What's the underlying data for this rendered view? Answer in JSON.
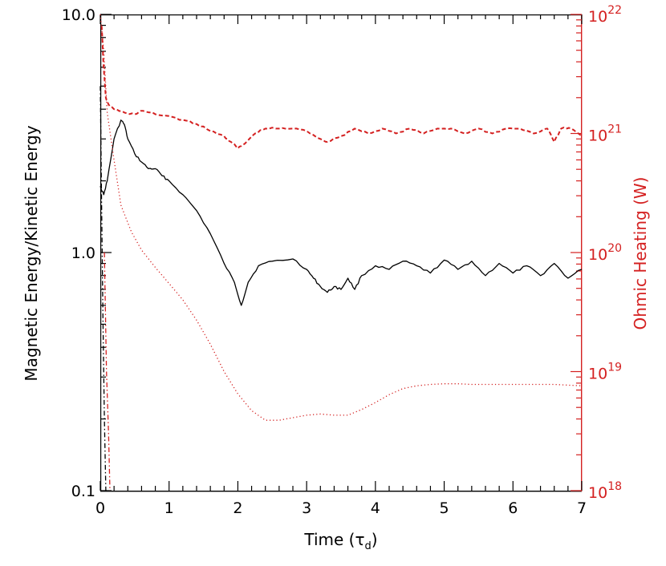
{
  "chart_data": {
    "type": "line",
    "title": "",
    "xlabel": "Time (τ",
    "xlabel_sub": "d",
    "xlabel_end": ")",
    "ylabel_left": "Magnetic Energy/Kinetic Energy",
    "ylabel_right": "Ohmic Heating (W)",
    "xlim": [
      0,
      7
    ],
    "ylim_left": [
      0.1,
      10
    ],
    "ylim_right": [
      1e+18,
      1e+22
    ],
    "yscale_left": "log",
    "yscale_right": "log",
    "x_ticks": [
      "0",
      "1",
      "2",
      "3",
      "4",
      "5",
      "6",
      "7"
    ],
    "y_ticks_left": [
      "0.1",
      "1.0",
      "10.0"
    ],
    "y_ticks_right": [
      {
        "base": "10",
        "exp": "18"
      },
      {
        "base": "10",
        "exp": "19"
      },
      {
        "base": "10",
        "exp": "20"
      },
      {
        "base": "10",
        "exp": "21"
      },
      {
        "base": "10",
        "exp": "22"
      }
    ],
    "colors": {
      "left_axis": "#000000",
      "right_axis": "#d42020"
    },
    "series": [
      {
        "axis": "left",
        "style": "solid",
        "color": "#000000",
        "x": [
          0.0,
          0.05,
          0.1,
          0.2,
          0.3,
          0.35,
          0.4,
          0.5,
          0.6,
          0.7,
          0.8,
          0.9,
          1.0,
          1.2,
          1.4,
          1.6,
          1.8,
          1.95,
          2.05,
          2.15,
          2.3,
          2.5,
          2.8,
          3.0,
          3.1,
          3.2,
          3.3,
          3.4,
          3.5,
          3.6,
          3.7,
          3.8,
          4.0,
          4.2,
          4.4,
          4.6,
          4.8,
          5.0,
          5.2,
          5.4,
          5.6,
          5.8,
          6.0,
          6.2,
          6.4,
          6.6,
          6.8,
          7.0
        ],
        "y": [
          1.9,
          1.75,
          2.0,
          3.0,
          3.6,
          3.45,
          3.0,
          2.6,
          2.4,
          2.25,
          2.25,
          2.1,
          2.0,
          1.75,
          1.5,
          1.2,
          0.9,
          0.75,
          0.6,
          0.75,
          0.88,
          0.92,
          0.94,
          0.85,
          0.78,
          0.72,
          0.68,
          0.72,
          0.7,
          0.78,
          0.7,
          0.8,
          0.88,
          0.85,
          0.92,
          0.88,
          0.82,
          0.93,
          0.85,
          0.92,
          0.8,
          0.9,
          0.82,
          0.88,
          0.8,
          0.9,
          0.78,
          0.85
        ]
      },
      {
        "axis": "right",
        "style": "dashed",
        "color": "#d42020",
        "x": [
          0.02,
          0.05,
          0.08,
          0.12,
          0.2,
          0.35,
          0.5,
          0.62,
          0.8,
          1.0,
          1.2,
          1.4,
          1.6,
          1.8,
          1.9,
          2.0,
          2.1,
          2.25,
          2.4,
          2.6,
          2.8,
          3.0,
          3.2,
          3.3,
          3.5,
          3.7,
          3.9,
          4.1,
          4.3,
          4.5,
          4.7,
          4.9,
          5.1,
          5.3,
          5.5,
          5.7,
          5.9,
          6.1,
          6.3,
          6.5,
          6.6,
          6.7,
          6.85,
          7.0
        ],
        "y": [
          8e+21,
          3.5e+21,
          2e+21,
          1.75e+21,
          1.6e+21,
          1.5e+21,
          1.45e+21,
          1.55e+21,
          1.45e+21,
          1.4e+21,
          1.3e+21,
          1.2e+21,
          1.05e+21,
          9.5e+20,
          8.5e+20,
          7.5e+20,
          8.2e+20,
          1e+21,
          1.1e+21,
          1.1e+21,
          1.1e+21,
          1.05e+21,
          9e+20,
          8.5e+20,
          9.5e+20,
          1.1e+21,
          1e+21,
          1.1e+21,
          1e+21,
          1.1e+21,
          1e+21,
          1.1e+21,
          1.1e+21,
          1e+21,
          1.1e+21,
          1e+21,
          1.1e+21,
          1.1e+21,
          1e+21,
          1.1e+21,
          8.5e+20,
          1.1e+21,
          1.1e+21,
          9.5e+20
        ]
      },
      {
        "axis": "right",
        "style": "dotted",
        "color": "#d42020",
        "x": [
          0.0,
          0.05,
          0.1,
          0.2,
          0.3,
          0.45,
          0.6,
          0.8,
          1.0,
          1.2,
          1.4,
          1.6,
          1.8,
          2.0,
          2.2,
          2.4,
          2.6,
          2.8,
          3.0,
          3.2,
          3.4,
          3.6,
          3.8,
          4.0,
          4.2,
          4.4,
          4.6,
          4.8,
          5.0,
          5.2,
          5.4,
          5.6,
          5.8,
          6.0,
          6.2,
          6.4,
          6.6,
          6.8,
          7.0
        ],
        "y": [
          1e+22,
          5e+21,
          1.5e+21,
          6e+20,
          2.5e+20,
          1.5e+20,
          1.05e+20,
          7.5e+19,
          5.5e+19,
          4e+19,
          2.7e+19,
          1.7e+19,
          1e+19,
          6.5e+18,
          4.7e+18,
          3.9e+18,
          3.9e+18,
          4.1e+18,
          4.3e+18,
          4.4e+18,
          4.3e+18,
          4.3e+18,
          4.8e+18,
          5.5e+18,
          6.4e+18,
          7.2e+18,
          7.6e+18,
          7.8e+18,
          7.9e+18,
          7.9e+18,
          7.8e+18,
          7.8e+18,
          7.8e+18,
          7.8e+18,
          7.8e+18,
          7.8e+18,
          7.8e+18,
          7.7e+18,
          7.6e+18
        ]
      },
      {
        "axis": "left",
        "style": "dash-dot",
        "color": "#000000",
        "x": [
          0.0,
          0.02,
          0.04,
          0.06,
          0.08
        ],
        "y": [
          5,
          1.5,
          0.5,
          0.2,
          0.1
        ]
      },
      {
        "axis": "right",
        "style": "dash-dot",
        "color": "#d42020",
        "x": [
          0.06,
          0.09,
          0.12,
          0.14
        ],
        "y": [
          1e+20,
          1e+19,
          3e+18,
          1e+18
        ]
      }
    ]
  }
}
